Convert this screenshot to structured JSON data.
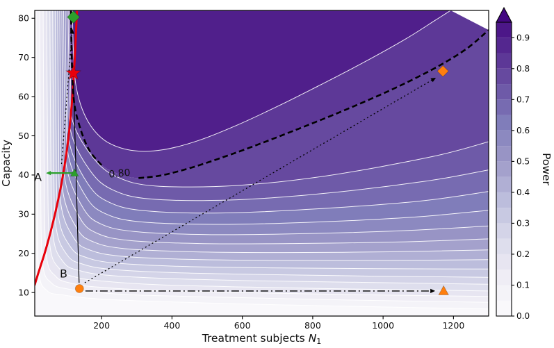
{
  "chart_data": {
    "type": "contour",
    "title": "",
    "xlabel": {
      "prefix": "Treatment subjects ",
      "variable": "N",
      "subscript": "1"
    },
    "ylabel": "Capacity",
    "xlim": [
      10,
      1300
    ],
    "ylim": [
      4,
      82
    ],
    "xticks": [
      200,
      400,
      600,
      800,
      1000,
      1200
    ],
    "yticks": [
      10,
      20,
      30,
      40,
      50,
      60,
      70,
      80
    ],
    "grid": false,
    "legend": "none",
    "colorbar": {
      "label": "Power",
      "ticks": [
        "0.0",
        "0.1",
        "0.2",
        "0.3",
        "0.4",
        "0.5",
        "0.6",
        "0.7",
        "0.8",
        "0.9"
      ],
      "tick_values": [
        0,
        0.1,
        0.2,
        0.3,
        0.4,
        0.5,
        0.6,
        0.7,
        0.8,
        0.9
      ],
      "vmin": 0,
      "vmax": 0.95,
      "extend": "max"
    },
    "colormap": {
      "name": "Purples",
      "anchors": [
        [
          0,
          "#fcfbfd"
        ],
        [
          0.125,
          "#efedf5"
        ],
        [
          0.25,
          "#dadaeb"
        ],
        [
          0.375,
          "#bcbddc"
        ],
        [
          0.5,
          "#9e9ac8"
        ],
        [
          0.625,
          "#807dba"
        ],
        [
          0.75,
          "#6a51a3"
        ],
        [
          0.875,
          "#54278f"
        ],
        [
          1,
          "#3f007d"
        ]
      ]
    },
    "level_step": 0.05,
    "contours": [
      {
        "level": 0.05,
        "points": [
          [
            14,
            82
          ],
          [
            16.5,
            40
          ],
          [
            21,
            16
          ],
          [
            45,
            10.5
          ],
          [
            90,
            9.4
          ],
          [
            160,
            8.6
          ],
          [
            300,
            7.9
          ],
          [
            600,
            7.1
          ],
          [
            900,
            6.5
          ],
          [
            1300,
            5.8
          ]
        ]
      },
      {
        "level": 0.1,
        "points": [
          [
            24,
            82
          ],
          [
            26.5,
            42
          ],
          [
            32,
            18
          ],
          [
            58,
            12.4
          ],
          [
            105,
            10.9
          ],
          [
            175,
            10.1
          ],
          [
            320,
            9.3
          ],
          [
            600,
            8.7
          ],
          [
            900,
            8.1
          ],
          [
            1300,
            7.5
          ]
        ]
      },
      {
        "level": 0.15,
        "points": [
          [
            34,
            82
          ],
          [
            36.5,
            44
          ],
          [
            42.5,
            20
          ],
          [
            70,
            14.1
          ],
          [
            118,
            12.3
          ],
          [
            190,
            11.4
          ],
          [
            340,
            10.6
          ],
          [
            600,
            10
          ],
          [
            900,
            9.5
          ],
          [
            1300,
            9
          ]
        ]
      },
      {
        "level": 0.2,
        "points": [
          [
            44,
            82
          ],
          [
            46.5,
            46
          ],
          [
            52.5,
            22.5
          ],
          [
            82,
            15.9
          ],
          [
            128,
            13.9
          ],
          [
            205,
            12.9
          ],
          [
            360,
            12
          ],
          [
            620,
            11.4
          ],
          [
            920,
            10.9
          ],
          [
            1300,
            10.4
          ]
        ]
      },
      {
        "level": 0.25,
        "points": [
          [
            53,
            82
          ],
          [
            55.5,
            48
          ],
          [
            61.5,
            25
          ],
          [
            92,
            17.7
          ],
          [
            138,
            15.6
          ],
          [
            218,
            14.4
          ],
          [
            380,
            13.6
          ],
          [
            640,
            13
          ],
          [
            940,
            12.6
          ],
          [
            1300,
            12.1
          ]
        ]
      },
      {
        "level": 0.3,
        "points": [
          [
            61,
            82
          ],
          [
            63.5,
            50
          ],
          [
            69.5,
            27.5
          ],
          [
            102,
            19.6
          ],
          [
            148,
            17.2
          ],
          [
            230,
            15.9
          ],
          [
            400,
            15.1
          ],
          [
            660,
            14.6
          ],
          [
            960,
            14.2
          ],
          [
            1300,
            13.9
          ]
        ]
      },
      {
        "level": 0.35,
        "points": [
          [
            68,
            82
          ],
          [
            70.5,
            52
          ],
          [
            76.5,
            30
          ],
          [
            112,
            21.6
          ],
          [
            158,
            18.9
          ],
          [
            242,
            17.5
          ],
          [
            420,
            16.7
          ],
          [
            680,
            16.3
          ],
          [
            980,
            16.1
          ],
          [
            1300,
            16
          ]
        ]
      },
      {
        "level": 0.4,
        "points": [
          [
            75,
            82
          ],
          [
            77.5,
            54
          ],
          [
            83.5,
            33
          ],
          [
            122,
            23.8
          ],
          [
            168,
            20.8
          ],
          [
            254,
            19.3
          ],
          [
            440,
            18.5
          ],
          [
            700,
            18.2
          ],
          [
            1000,
            18.2
          ],
          [
            1300,
            18.4
          ]
        ]
      },
      {
        "level": 0.45,
        "points": [
          [
            81,
            82
          ],
          [
            83.5,
            55.5
          ],
          [
            89.5,
            36
          ],
          [
            131,
            26.2
          ],
          [
            178,
            22.9
          ],
          [
            266,
            21.2
          ],
          [
            460,
            20.4
          ],
          [
            720,
            20.2
          ],
          [
            1020,
            20.4
          ],
          [
            1300,
            20.9
          ]
        ]
      },
      {
        "level": 0.5,
        "points": [
          [
            87,
            82
          ],
          [
            89.5,
            57
          ],
          [
            95.5,
            39
          ],
          [
            140,
            28.8
          ],
          [
            188,
            25.1
          ],
          [
            278,
            23.3
          ],
          [
            480,
            22.5
          ],
          [
            740,
            22.5
          ],
          [
            1040,
            22.9
          ],
          [
            1300,
            23.7
          ]
        ]
      },
      {
        "level": 0.55,
        "points": [
          [
            92,
            82
          ],
          [
            94.5,
            58.5
          ],
          [
            100.5,
            42
          ],
          [
            148,
            31.5
          ],
          [
            198,
            27.5
          ],
          [
            292,
            25.6
          ],
          [
            500,
            24.8
          ],
          [
            760,
            25
          ],
          [
            1060,
            25.8
          ],
          [
            1300,
            27
          ]
        ]
      },
      {
        "level": 0.6,
        "points": [
          [
            97,
            82
          ],
          [
            99.5,
            60
          ],
          [
            105.5,
            45
          ],
          [
            156,
            34.4
          ],
          [
            209,
            30.2
          ],
          [
            306,
            28.1
          ],
          [
            520,
            27.4
          ],
          [
            780,
            27.9
          ],
          [
            1080,
            29.2
          ],
          [
            1300,
            31
          ]
        ]
      },
      {
        "level": 0.65,
        "points": [
          [
            101,
            82
          ],
          [
            103.5,
            61.5
          ],
          [
            109.5,
            47.8
          ],
          [
            163,
            37.5
          ],
          [
            220,
            33.1
          ],
          [
            320,
            30.9
          ],
          [
            540,
            30.3
          ],
          [
            800,
            31.3
          ],
          [
            1100,
            33.3
          ],
          [
            1300,
            35.8
          ]
        ]
      },
      {
        "level": 0.7,
        "points": [
          [
            105,
            82
          ],
          [
            107.5,
            63.5
          ],
          [
            113.5,
            50.7
          ],
          [
            170,
            40.8
          ],
          [
            232,
            36.2
          ],
          [
            336,
            33.9
          ],
          [
            560,
            33.6
          ],
          [
            820,
            35.2
          ],
          [
            1120,
            38.4
          ],
          [
            1300,
            41.3
          ]
        ]
      },
      {
        "level": 0.75,
        "points": [
          [
            109,
            82
          ],
          [
            111.5,
            65.5
          ],
          [
            117.5,
            53.8
          ],
          [
            177,
            44.3
          ],
          [
            244,
            39.5
          ],
          [
            352,
            37.2
          ],
          [
            580,
            37.3
          ],
          [
            840,
            39.8
          ],
          [
            1140,
            44.7
          ],
          [
            1300,
            48.5
          ]
        ]
      },
      {
        "level": 0.8,
        "points": [
          [
            113,
            82
          ],
          [
            115.5,
            69
          ],
          [
            122,
            58.5
          ],
          [
            139,
            52
          ],
          [
            165,
            46.3
          ],
          [
            200,
            42.5
          ],
          [
            250,
            40.2
          ],
          [
            305,
            39.2
          ],
          [
            370,
            39.9
          ],
          [
            460,
            42
          ],
          [
            560,
            45
          ],
          [
            660,
            48.3
          ],
          [
            760,
            51.8
          ],
          [
            860,
            55.4
          ],
          [
            960,
            59.2
          ],
          [
            1060,
            63.3
          ],
          [
            1160,
            67.9
          ],
          [
            1240,
            72.4
          ],
          [
            1300,
            77
          ]
        ]
      },
      {
        "level": 0.85,
        "points": [
          [
            117,
            82
          ],
          [
            119.5,
            72.5
          ],
          [
            126,
            63.5
          ],
          [
            145,
            56.8
          ],
          [
            176,
            51.7
          ],
          [
            222,
            48.1
          ],
          [
            292,
            46.2
          ],
          [
            372,
            46.4
          ],
          [
            472,
            48.7
          ],
          [
            582,
            52.6
          ],
          [
            702,
            57.6
          ],
          [
            822,
            63
          ],
          [
            942,
            68.6
          ],
          [
            1062,
            74.6
          ],
          [
            1145,
            79.3
          ],
          [
            1192,
            82
          ]
        ]
      }
    ],
    "contour_label": {
      "level": 0.8,
      "text": "0.80",
      "pos": [
        251,
        40.3
      ],
      "angle": -5,
      "gap": [
        213,
        292
      ]
    },
    "red_line": {
      "name": "capacity-constraint-line",
      "color": "#e8000b",
      "width": 3,
      "points": [
        [
          10,
          12
        ],
        [
          22,
          15.5
        ],
        [
          38,
          20
        ],
        [
          55,
          25.5
        ],
        [
          70,
          31
        ],
        [
          83,
          36.5
        ],
        [
          94,
          42
        ],
        [
          103,
          47.5
        ],
        [
          110,
          53
        ],
        [
          116,
          59
        ],
        [
          121,
          65.5
        ],
        [
          125,
          72
        ],
        [
          128,
          78
        ],
        [
          130,
          82
        ]
      ]
    },
    "arrows": [
      {
        "name": "arrow-a-to-target",
        "from": [
          86,
          42.8
        ],
        "to": [
          117,
          77.3
        ],
        "style": "dotted",
        "color": "#000000",
        "width": 1.3,
        "head": 7
      },
      {
        "name": "line-star-to-b",
        "from": [
          120,
          63.5
        ],
        "to": [
          136,
          12.5
        ],
        "style": "solid",
        "color": "#000000",
        "width": 1.2,
        "head": 0
      },
      {
        "name": "arrow-b-to-diamond",
        "from": [
          152,
          12.5
        ],
        "to": [
          1150,
          64.8
        ],
        "style": "dotted",
        "color": "#000000",
        "width": 1.3,
        "head": 7
      },
      {
        "name": "arrow-b-to-triangle",
        "from": [
          154,
          10.4
        ],
        "to": [
          1148,
          10.4
        ],
        "style": "dashdot",
        "color": "#000000",
        "width": 1.4,
        "head": 7
      },
      {
        "name": "arrow-a-range",
        "from": [
          121,
          40.5
        ],
        "to": [
          42,
          40.5
        ],
        "style": "solid",
        "color": "#2ca02c",
        "width": 2.2,
        "head": 7
      }
    ],
    "markers": [
      {
        "name": "marker-a-triangle",
        "shape": "triangle-up",
        "color": "#2ca02c",
        "pos": [
          123,
          40.5
        ],
        "size": 6
      },
      {
        "name": "marker-target-diamond",
        "shape": "diamond",
        "color": "#2ca02c",
        "pos": [
          120,
          80.3
        ],
        "size": 9
      },
      {
        "name": "marker-optimal-star",
        "shape": "star",
        "color": "#e8000b",
        "pos": [
          120,
          66
        ],
        "size": 11
      },
      {
        "name": "marker-b-circle",
        "shape": "circle",
        "color": "#ff7f0e",
        "pos": [
          137,
          11
        ],
        "size": 6
      },
      {
        "name": "marker-b-diamond",
        "shape": "diamond",
        "color": "#ff7f0e",
        "pos": [
          1170,
          66.5
        ],
        "size": 8
      },
      {
        "name": "marker-b-triangle",
        "shape": "triangle-up",
        "color": "#ff7f0e",
        "pos": [
          1172,
          10.4
        ],
        "size": 7.5
      }
    ],
    "annotations": [
      {
        "name": "label-a",
        "text": "A",
        "pos": [
          19,
          38.5
        ]
      },
      {
        "name": "label-b",
        "text": "B",
        "pos": [
          92,
          13.8
        ]
      }
    ]
  }
}
